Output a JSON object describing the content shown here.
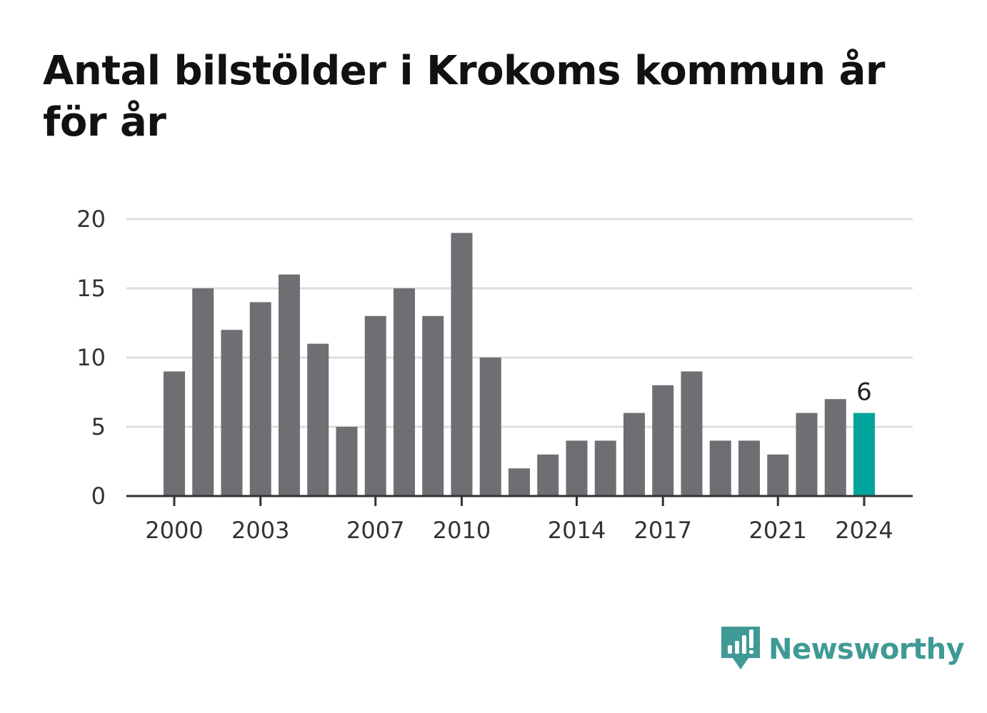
{
  "title": "Antal bilstölder i Krokoms kommun år för år",
  "brand": {
    "name": "Newsworthy",
    "icon": "newsworthy-logo-icon"
  },
  "colors": {
    "bar": "#6f6e73",
    "highlight": "#00a49c",
    "grid": "#dddddd",
    "axis": "#333333",
    "brand": "#3f9a95"
  },
  "chart_data": {
    "type": "bar",
    "title": "Antal bilstölder i Krokoms kommun år för år",
    "xlabel": "",
    "ylabel": "",
    "categories": [
      2000,
      2001,
      2002,
      2003,
      2004,
      2005,
      2006,
      2007,
      2008,
      2009,
      2010,
      2011,
      2012,
      2013,
      2014,
      2015,
      2016,
      2017,
      2018,
      2019,
      2020,
      2021,
      2022,
      2023,
      2024
    ],
    "values": [
      9,
      15,
      12,
      14,
      16,
      11,
      5,
      13,
      15,
      13,
      19,
      10,
      2,
      3,
      4,
      4,
      6,
      8,
      9,
      4,
      4,
      3,
      6,
      7,
      6
    ],
    "ylim": [
      0,
      20
    ],
    "yticks": [
      0,
      5,
      10,
      15,
      20
    ],
    "xticks": [
      "2000",
      "2003",
      "2007",
      "2010",
      "2014",
      "2017",
      "2021",
      "2024"
    ],
    "highlight_category": 2024,
    "data_labels": [
      {
        "category": 2024,
        "text": "6"
      }
    ],
    "grid": true,
    "legend": "none"
  }
}
